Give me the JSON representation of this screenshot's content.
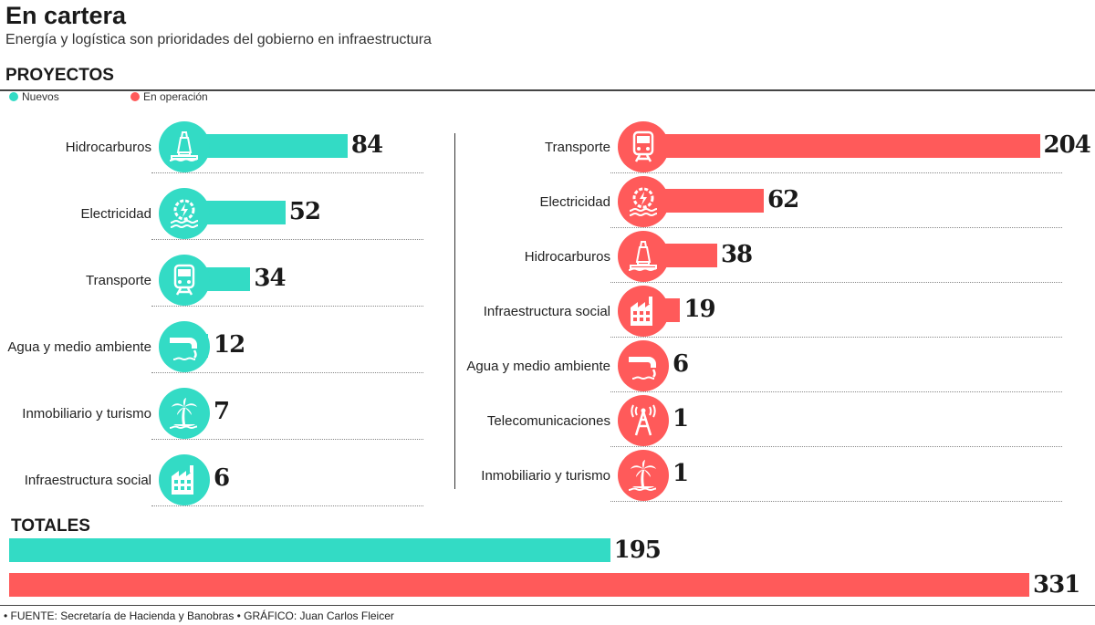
{
  "title": "En cartera",
  "subtitle": "Energía y logística son prioridades del gobierno en infraestructura",
  "section_title": "PROYECTOS",
  "legend": {
    "new_label": "Nuevos",
    "operating_label": "En operación"
  },
  "totals_title": "TOTALES",
  "source": "• FUENTE: Secretaría de Hacienda y Banobras • GRÁFICO: Juan Carlos Fleicer",
  "colors": {
    "new": "#33DBC5",
    "operating": "#FF5A5A"
  },
  "chart_data": [
    {
      "type": "bar",
      "series_name": "Nuevos",
      "categories": [
        "Hidrocarburos",
        "Electricidad",
        "Transporte",
        "Agua y medio ambiente",
        "Inmobiliario y turismo",
        "Infraestructura social"
      ],
      "values": [
        84,
        52,
        34,
        12,
        7,
        6
      ],
      "icons": [
        "oil-rig-icon",
        "power-plant-icon",
        "train-icon",
        "water-pipe-icon",
        "palm-island-icon",
        "building-icon"
      ]
    },
    {
      "type": "bar",
      "series_name": "En operación",
      "categories": [
        "Transporte",
        "Electricidad",
        "Hidrocarburos",
        "Infraestructura social",
        "Agua y medio ambiente",
        "Telecomunicaciones",
        "Inmobiliario y turismo"
      ],
      "values": [
        204,
        62,
        38,
        19,
        6,
        1,
        1
      ],
      "icons": [
        "train-icon",
        "power-plant-icon",
        "oil-rig-icon",
        "building-icon",
        "water-pipe-icon",
        "antenna-tower-icon",
        "palm-island-icon"
      ]
    },
    {
      "type": "bar",
      "title": "TOTALES",
      "categories": [
        "Nuevos",
        "En operación"
      ],
      "values": [
        195,
        331
      ]
    }
  ]
}
